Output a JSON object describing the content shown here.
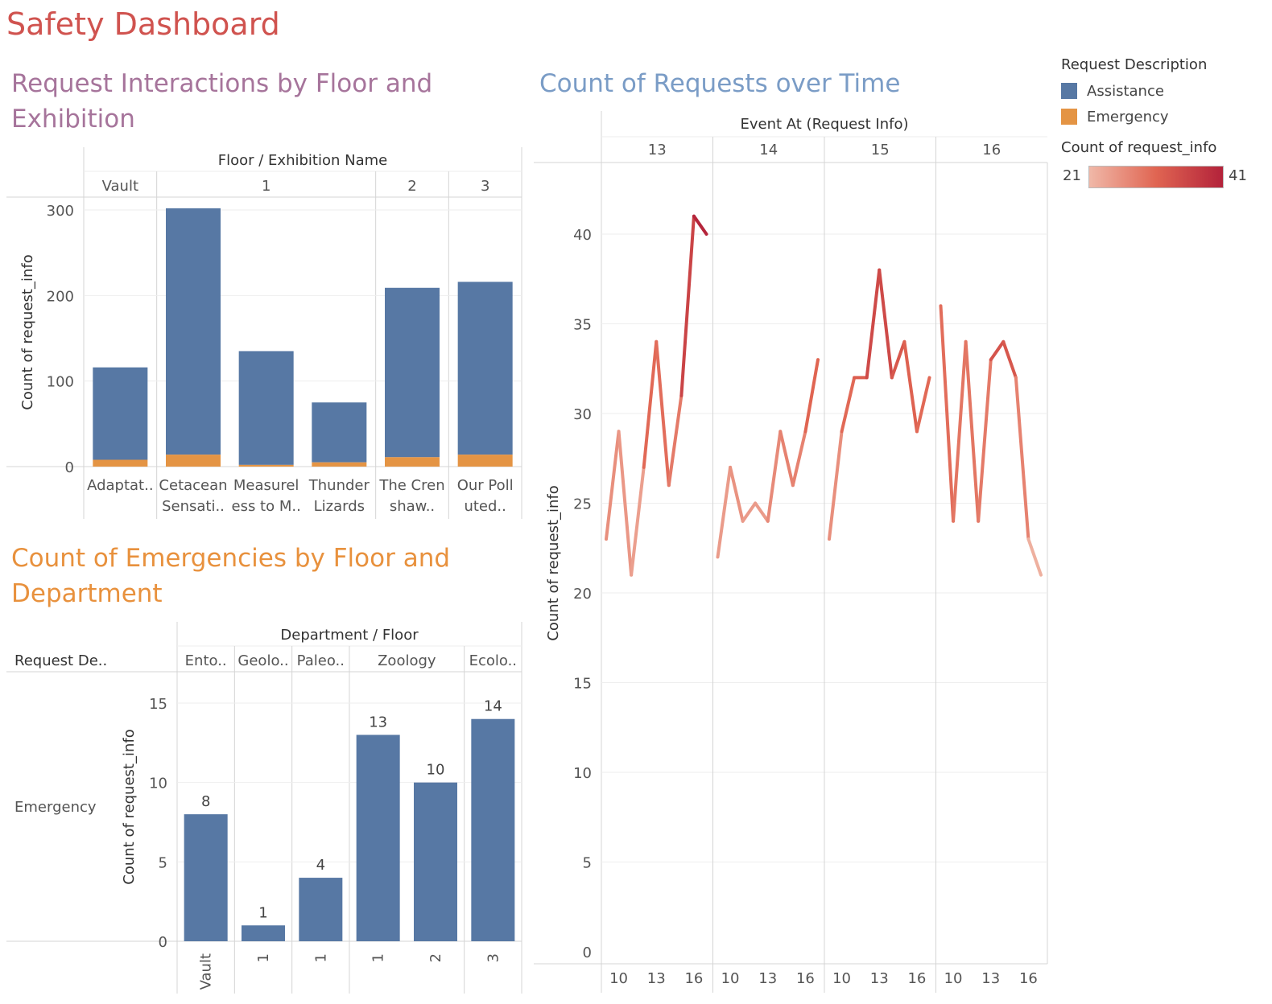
{
  "dashboard": {
    "title": "Safety Dashboard"
  },
  "legend": {
    "title": "Request Description",
    "items": [
      {
        "label": "Assistance",
        "color": "#5778a4"
      },
      {
        "label": "Emergency",
        "color": "#e49444"
      }
    ],
    "scale_title": "Count of request_info",
    "scale_min": "21",
    "scale_max": "41",
    "scale_colors": [
      "#f0b8a8",
      "#b3223a"
    ]
  },
  "chart_data": [
    {
      "id": "requests-by-floor",
      "type": "bar",
      "title": "Request Interactions by Floor and Exhibition",
      "header_title": "Floor / Exhibition Name",
      "floors": [
        {
          "label": "Vault",
          "span": 1
        },
        {
          "label": "1",
          "span": 3
        },
        {
          "label": "2",
          "span": 1
        },
        {
          "label": "3",
          "span": 1
        }
      ],
      "categories": [
        [
          "Adaptat..",
          ""
        ],
        [
          "Cetacean",
          "Sensati.."
        ],
        [
          "Measurel",
          "ess to M.."
        ],
        [
          "Thunder",
          "Lizards"
        ],
        [
          "The Cren",
          "shaw.."
        ],
        [
          "Our Poll",
          "uted.."
        ]
      ],
      "series": [
        {
          "name": "Emergency",
          "values": [
            8,
            14,
            2,
            5,
            11,
            14
          ]
        },
        {
          "name": "Assistance",
          "values": [
            108,
            288,
            133,
            70,
            198,
            202
          ]
        }
      ],
      "stacked": true,
      "ylabel": "Count of request_info",
      "ylim": [
        0,
        300
      ],
      "yticks": [
        0,
        100,
        200,
        300
      ]
    },
    {
      "id": "requests-over-time",
      "type": "line",
      "title": "Count of Requests over Time",
      "header_title": "Event At (Request Info)",
      "days": [
        "13",
        "14",
        "15",
        "16"
      ],
      "hour_ticks": [
        "10",
        "13",
        "16"
      ],
      "x_hours": [
        9,
        10,
        11,
        12,
        13,
        14,
        15,
        16,
        17
      ],
      "series": [
        {
          "day": "13",
          "values": [
            23,
            29,
            21,
            27,
            34,
            26,
            31,
            41,
            40
          ]
        },
        {
          "day": "14",
          "values": [
            22,
            27,
            24,
            25,
            24,
            29,
            26,
            29,
            33
          ]
        },
        {
          "day": "15",
          "values": [
            23,
            29,
            32,
            32,
            38,
            32,
            34,
            29,
            32
          ]
        },
        {
          "day": "16",
          "values": [
            36,
            24,
            34,
            24,
            33,
            34,
            32,
            23,
            21
          ]
        }
      ],
      "ylabel": "Count of request_info",
      "ylim": [
        0,
        42
      ],
      "yticks": [
        0,
        5,
        10,
        15,
        20,
        25,
        30,
        35,
        40
      ],
      "color_range": [
        21,
        41
      ]
    },
    {
      "id": "emergencies-by-floor",
      "type": "bar",
      "title": "Count of Emergencies by Floor and Department",
      "header_title": "Department / Floor",
      "row_header": "Request De..",
      "row_label": "Emergency",
      "departments": [
        {
          "label": "Ento..",
          "span": 1
        },
        {
          "label": "Geolo..",
          "span": 1
        },
        {
          "label": "Paleo..",
          "span": 1
        },
        {
          "label": "Zoology",
          "span": 2
        },
        {
          "label": "Ecolo..",
          "span": 1
        }
      ],
      "categories": [
        "Vault",
        "1",
        "1",
        "1",
        "2",
        "3"
      ],
      "values": [
        8,
        1,
        4,
        13,
        10,
        14
      ],
      "data_labels": [
        "8",
        "1",
        "4",
        "13",
        "10",
        "14"
      ],
      "ylabel": "Count of request_info",
      "ylim": [
        0,
        17
      ],
      "yticks": [
        0,
        5,
        10,
        15
      ]
    }
  ]
}
